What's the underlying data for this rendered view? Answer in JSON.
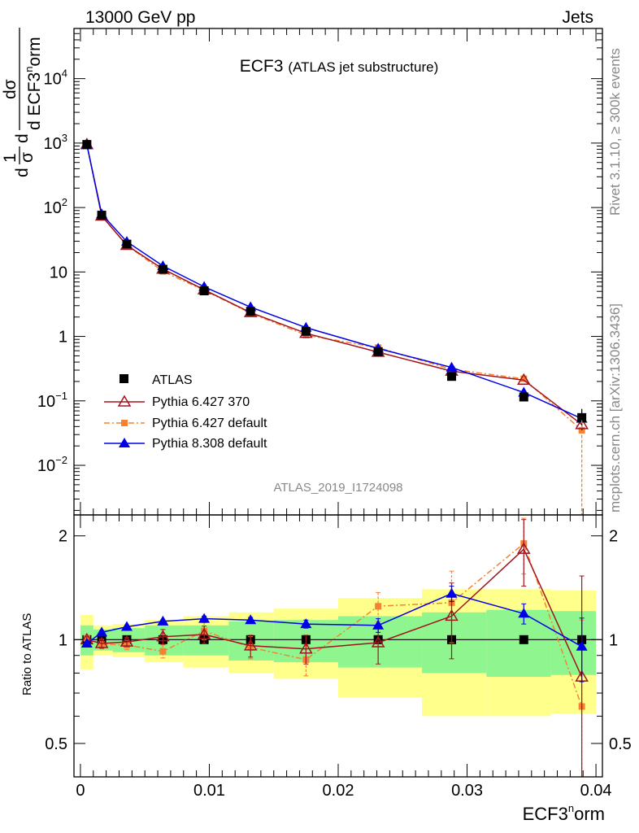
{
  "header": {
    "left": "13000 GeV pp",
    "right": "Jets"
  },
  "plot_title": {
    "main": "ECF3",
    "sub": "(ATLAS jet substructure)"
  },
  "analysis_id": "ATLAS_2019_I1724098",
  "side_labels": {
    "rivet": "Rivet 3.1.10, ≥ 300k events",
    "mcplots": "mcplots.cern.ch [arXiv:1306.3436]"
  },
  "ylabel_main": {
    "prefix_num": "1",
    "prefix_den": "σ",
    "d_num": "dσ",
    "d_den": "d ECF3",
    "sup": "n",
    "suffix": "orm",
    "lead_d": "d",
    "mid_d": "d"
  },
  "ylabel_ratio": "Ratio to ATLAS",
  "xlabel": {
    "base": "ECF3",
    "sup": "n",
    "suffix": "orm"
  },
  "main_ticks": {
    "log_labels": [
      {
        "v": 0.01,
        "base": "10",
        "exp": "−2"
      },
      {
        "v": 0.1,
        "base": "10",
        "exp": "−1"
      },
      {
        "v": 1,
        "text": "1"
      },
      {
        "v": 10,
        "text": "10"
      },
      {
        "v": 100,
        "base": "10",
        "exp": "2"
      },
      {
        "v": 1000,
        "base": "10",
        "exp": "3"
      },
      {
        "v": 10000,
        "base": "10",
        "exp": "4"
      }
    ]
  },
  "ratio_ticks": [
    {
      "v": 0.5,
      "text": "0.5"
    },
    {
      "v": 1,
      "text": "1"
    },
    {
      "v": 2,
      "text": "2"
    }
  ],
  "x_ticks": [
    {
      "v": 0,
      "text": "0"
    },
    {
      "v": 0.01,
      "text": "0.01"
    },
    {
      "v": 0.02,
      "text": "0.02"
    },
    {
      "v": 0.03,
      "text": "0.03"
    },
    {
      "v": 0.04,
      "text": "0.04"
    }
  ],
  "colors": {
    "data": "#000000",
    "py6_370": "#a0141e",
    "py6_default": "#f58232",
    "py8": "#0000e6",
    "band_inner": "#8ff58f",
    "band_outer": "#ffff8c"
  },
  "chart_data": {
    "type": "scatter",
    "log_y": true,
    "xlim": [
      -0.0005,
      0.0405
    ],
    "ylim": [
      0.0017,
      60000
    ],
    "ratio_ylim": [
      0.4,
      2.3
    ],
    "ratio_log": true,
    "legend_position": "center-left",
    "bins": [
      {
        "lo": 0.0,
        "hi": 0.001,
        "x": 0.0005
      },
      {
        "lo": 0.001,
        "hi": 0.0025,
        "x": 0.00165
      },
      {
        "lo": 0.0025,
        "hi": 0.005,
        "x": 0.0036
      },
      {
        "lo": 0.005,
        "hi": 0.008,
        "x": 0.0064
      },
      {
        "lo": 0.008,
        "hi": 0.0115,
        "x": 0.0096
      },
      {
        "lo": 0.0115,
        "hi": 0.015,
        "x": 0.0132
      },
      {
        "lo": 0.015,
        "hi": 0.02,
        "x": 0.0175
      },
      {
        "lo": 0.02,
        "hi": 0.0265,
        "x": 0.0231
      },
      {
        "lo": 0.0265,
        "hi": 0.0315,
        "x": 0.0288
      },
      {
        "lo": 0.0315,
        "hi": 0.0365,
        "x": 0.0344
      },
      {
        "lo": 0.0365,
        "hi": 0.04,
        "x": 0.0389
      }
    ],
    "series": [
      {
        "name": "ATLAS",
        "marker": "square",
        "values": [
          950,
          76,
          27,
          11,
          5.1,
          2.45,
          1.2,
          0.58,
          0.24,
          0.115,
          0.055
        ],
        "errors": [
          30,
          2,
          0.6,
          0.25,
          0.12,
          0.06,
          0.03,
          0.02,
          0.02,
          0.012,
          0.02
        ]
      },
      {
        "name": "Pythia 6.427 370",
        "marker": "open-triangle",
        "values": [
          950,
          74,
          26,
          11.1,
          5.3,
          2.35,
          1.12,
          0.57,
          0.29,
          0.21,
          0.043
        ],
        "ratio": [
          1.0,
          0.975,
          0.985,
          1.02,
          1.035,
          0.96,
          0.94,
          0.98,
          1.17,
          1.83,
          0.78
        ],
        "ratio_errors": [
          0.02,
          0.03,
          0.03,
          0.05,
          0.06,
          0.07,
          0.09,
          0.13,
          0.29,
          0.4,
          0.75
        ]
      },
      {
        "name": "Pythia 6.427 default",
        "marker": "filled-square-small",
        "dashed": true,
        "values": [
          960,
          74,
          26,
          10.2,
          5.2,
          2.3,
          1.05,
          0.67,
          0.31,
          0.22,
          0.035
        ],
        "ratio": [
          1.01,
          0.97,
          0.965,
          0.925,
          1.06,
          0.95,
          0.875,
          1.25,
          1.28,
          1.9,
          0.64
        ],
        "ratio_errors": [
          0.02,
          0.03,
          0.03,
          0.04,
          0.06,
          0.07,
          0.09,
          0.12,
          0.3,
          0.35,
          0.5
        ]
      },
      {
        "name": "Pythia 8.308 default",
        "marker": "filled-triangle",
        "values": [
          930,
          79,
          29.5,
          12.4,
          5.9,
          2.85,
          1.37,
          0.65,
          0.33,
          0.135,
          0.053
        ],
        "ratio": [
          0.975,
          1.05,
          1.09,
          1.13,
          1.15,
          1.14,
          1.11,
          1.1,
          1.36,
          1.19,
          0.955
        ],
        "ratio_errors": [
          0.01,
          0.01,
          0.01,
          0.01,
          0.02,
          0.02,
          0.03,
          0.05,
          0.07,
          0.08,
          0.2
        ]
      }
    ],
    "data_band_inner": [
      0.1,
      0.07,
      0.08,
      0.1,
      0.1,
      0.13,
      0.14,
      0.17,
      0.2,
      0.22,
      0.21
    ],
    "data_band_outer": [
      0.18,
      0.1,
      0.11,
      0.14,
      0.17,
      0.2,
      0.23,
      0.32,
      0.4,
      0.4,
      0.39
    ]
  }
}
